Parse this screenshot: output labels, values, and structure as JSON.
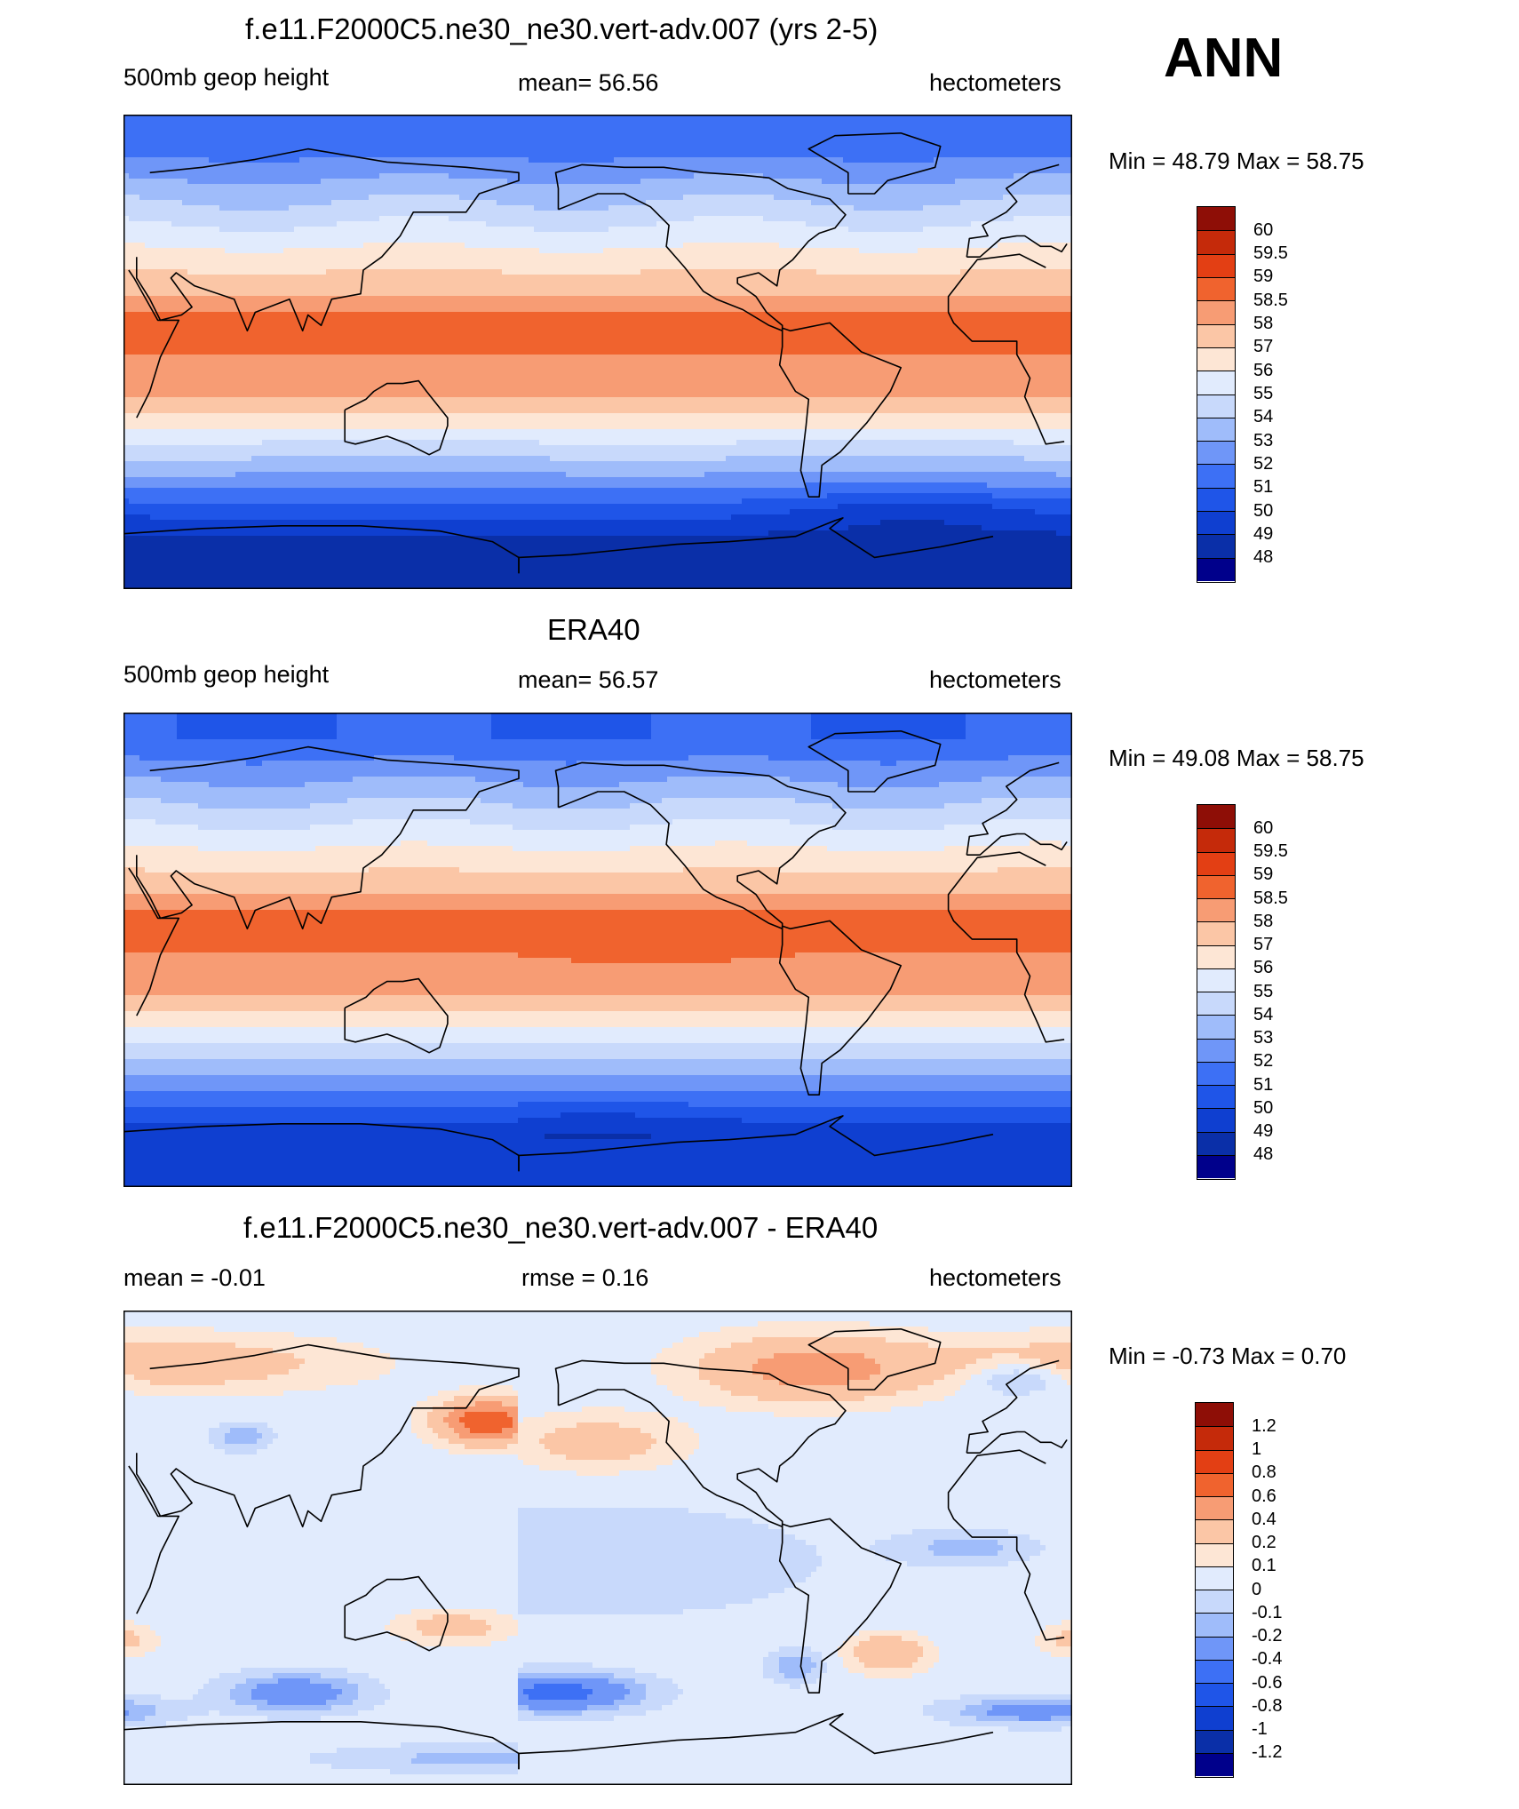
{
  "season": "ANN",
  "panels": [
    {
      "id": "model",
      "title": "f.e11.F2000C5.ne30_ne30.vert-adv.007 (yrs 2-5)",
      "left_label": "500mb geop height",
      "center_label": "mean=  56.56",
      "right_label": "hectometers",
      "minmax": "Min =  48.79 Max =  58.75",
      "field": "abs",
      "params": {
        "ntrop": 58.5,
        "strop": 58.3,
        "polar_n": 51.2,
        "polar_s": 48.9,
        "cold_pool": [
          -30,
          -60,
          -1.2
        ]
      },
      "levels": [
        "60",
        "59.5",
        "59",
        "58.5",
        "58",
        "57",
        "56",
        "55",
        "54",
        "53",
        "52",
        "51",
        "50",
        "49",
        "48"
      ]
    },
    {
      "id": "obs",
      "title": "ERA40",
      "left_label": "500mb geop height",
      "center_label": "mean=  56.57",
      "right_label": "hectometers",
      "minmax": "Min =  49.08 Max =  58.75",
      "field": "abs",
      "params": {
        "ntrop": 58.5,
        "strop": 58.4,
        "polar_n": 51.0,
        "polar_s": 49.3,
        "cold_pool": [
          -150,
          -65,
          -0.6
        ]
      },
      "levels": [
        "60",
        "59.5",
        "59",
        "58.5",
        "58",
        "57",
        "56",
        "55",
        "54",
        "53",
        "52",
        "51",
        "50",
        "49",
        "48"
      ]
    },
    {
      "id": "diff",
      "title": "f.e11.F2000C5.ne30_ne30.vert-adv.007 - ERA40",
      "left_label": "mean =  -0.01",
      "center_label": "rmse =   0.16",
      "right_label": "hectometers",
      "minmax": "Min =  -0.73 Max =   0.70",
      "field": "diff",
      "levels": [
        "1.2",
        "1",
        "0.8",
        "0.6",
        "0.4",
        "0.2",
        "0.1",
        "0",
        "-0.1",
        "-0.2",
        "-0.4",
        "-0.6",
        "-0.8",
        "-1",
        "-1.2"
      ]
    }
  ],
  "colors": {
    "abs_thresholds": [
      48,
      49,
      50,
      51,
      52,
      53,
      54,
      55,
      56,
      57,
      58,
      58.5,
      59,
      59.5,
      60
    ],
    "abs_palette": [
      "#00008b",
      "#0a2fa8",
      "#0f3fd0",
      "#1f55e8",
      "#3d70f5",
      "#6f96f8",
      "#9fbcfa",
      "#c8d9fb",
      "#e1ebfd",
      "#fde6d5",
      "#fbc6a6",
      "#f79c74",
      "#f0632e",
      "#e33f14",
      "#c52a0a",
      "#8e0e06"
    ],
    "diff_thresholds": [
      -1.2,
      -1,
      -0.8,
      -0.6,
      -0.4,
      -0.2,
      -0.1,
      0,
      0.1,
      0.2,
      0.4,
      0.6,
      0.8,
      1,
      1.2
    ],
    "diff_palette": [
      "#00008b",
      "#0a2fa8",
      "#0f3fd0",
      "#1f55e8",
      "#3d70f5",
      "#6f96f8",
      "#9fbcfa",
      "#c8d9fb",
      "#e1ebfd",
      "#fde6d5",
      "#fbc6a6",
      "#f79c74",
      "#f0632e",
      "#e33f14",
      "#c52a0a",
      "#8e0e06"
    ]
  }
}
